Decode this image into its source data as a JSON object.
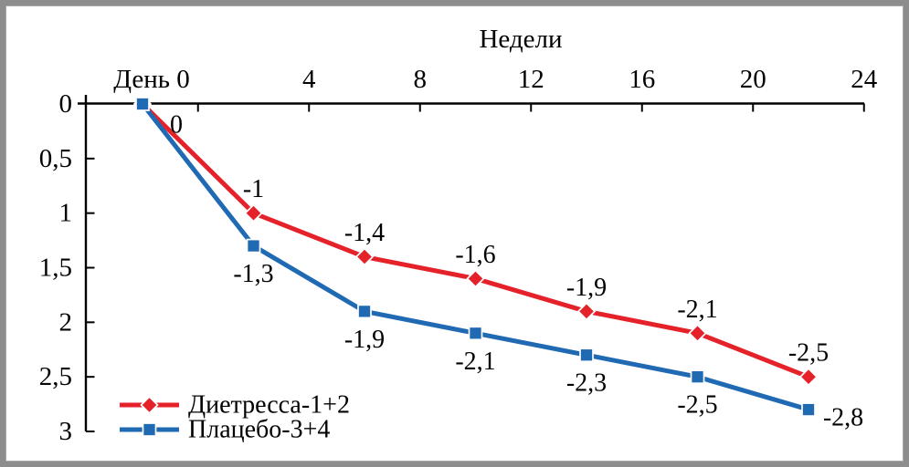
{
  "frame": {
    "border_color": "#8d8d8d",
    "background": "#ffffff"
  },
  "chart_data": {
    "type": "line",
    "title": "Недели",
    "x_axis": {
      "title": "Недели",
      "tick_labels": [
        "День 0",
        "4",
        "8",
        "12",
        "16",
        "20",
        "24"
      ],
      "range_weeks": [
        0,
        24
      ],
      "position": "top",
      "layout_note": "7 evenly spaced data points: first under the 'День 0' label, the rest midway between the week ticks"
    },
    "y_axis": {
      "tick_labels": [
        "0",
        "0,5",
        "1",
        "1,5",
        "2",
        "2,5",
        "3"
      ],
      "range": [
        0,
        3
      ],
      "direction": "magnitude of negative change, increasing downward",
      "grid": "off"
    },
    "series": [
      {
        "name": "Диетресса-1+2",
        "color": "#e52129",
        "marker": "diamond",
        "values": [
          0,
          -1,
          -1.4,
          -1.6,
          -1.9,
          -2.1,
          -2.5
        ],
        "point_labels": [
          "0",
          "-1",
          "-1,4",
          "-1,6",
          "-1,9",
          "-2,1",
          "-2,5"
        ],
        "label_sides": [
          "below-right",
          "above",
          "above",
          "above",
          "above",
          "above",
          "above"
        ]
      },
      {
        "name": "Плацебо-3+4",
        "color": "#1f6ab3",
        "marker": "square",
        "values": [
          0,
          -1.3,
          -1.9,
          -2.1,
          -2.3,
          -2.5,
          -2.8
        ],
        "point_labels": [
          "",
          "-1,3",
          "-1,9",
          "-2,1",
          "-2,3",
          "-2,5",
          "-2,8"
        ],
        "label_sides": [
          "none",
          "below",
          "below",
          "below",
          "below",
          "below",
          "right"
        ]
      }
    ],
    "legend": {
      "position": "bottom-left",
      "entries": [
        "Диетресса-1+2",
        "Плацебо-3+4"
      ]
    }
  }
}
